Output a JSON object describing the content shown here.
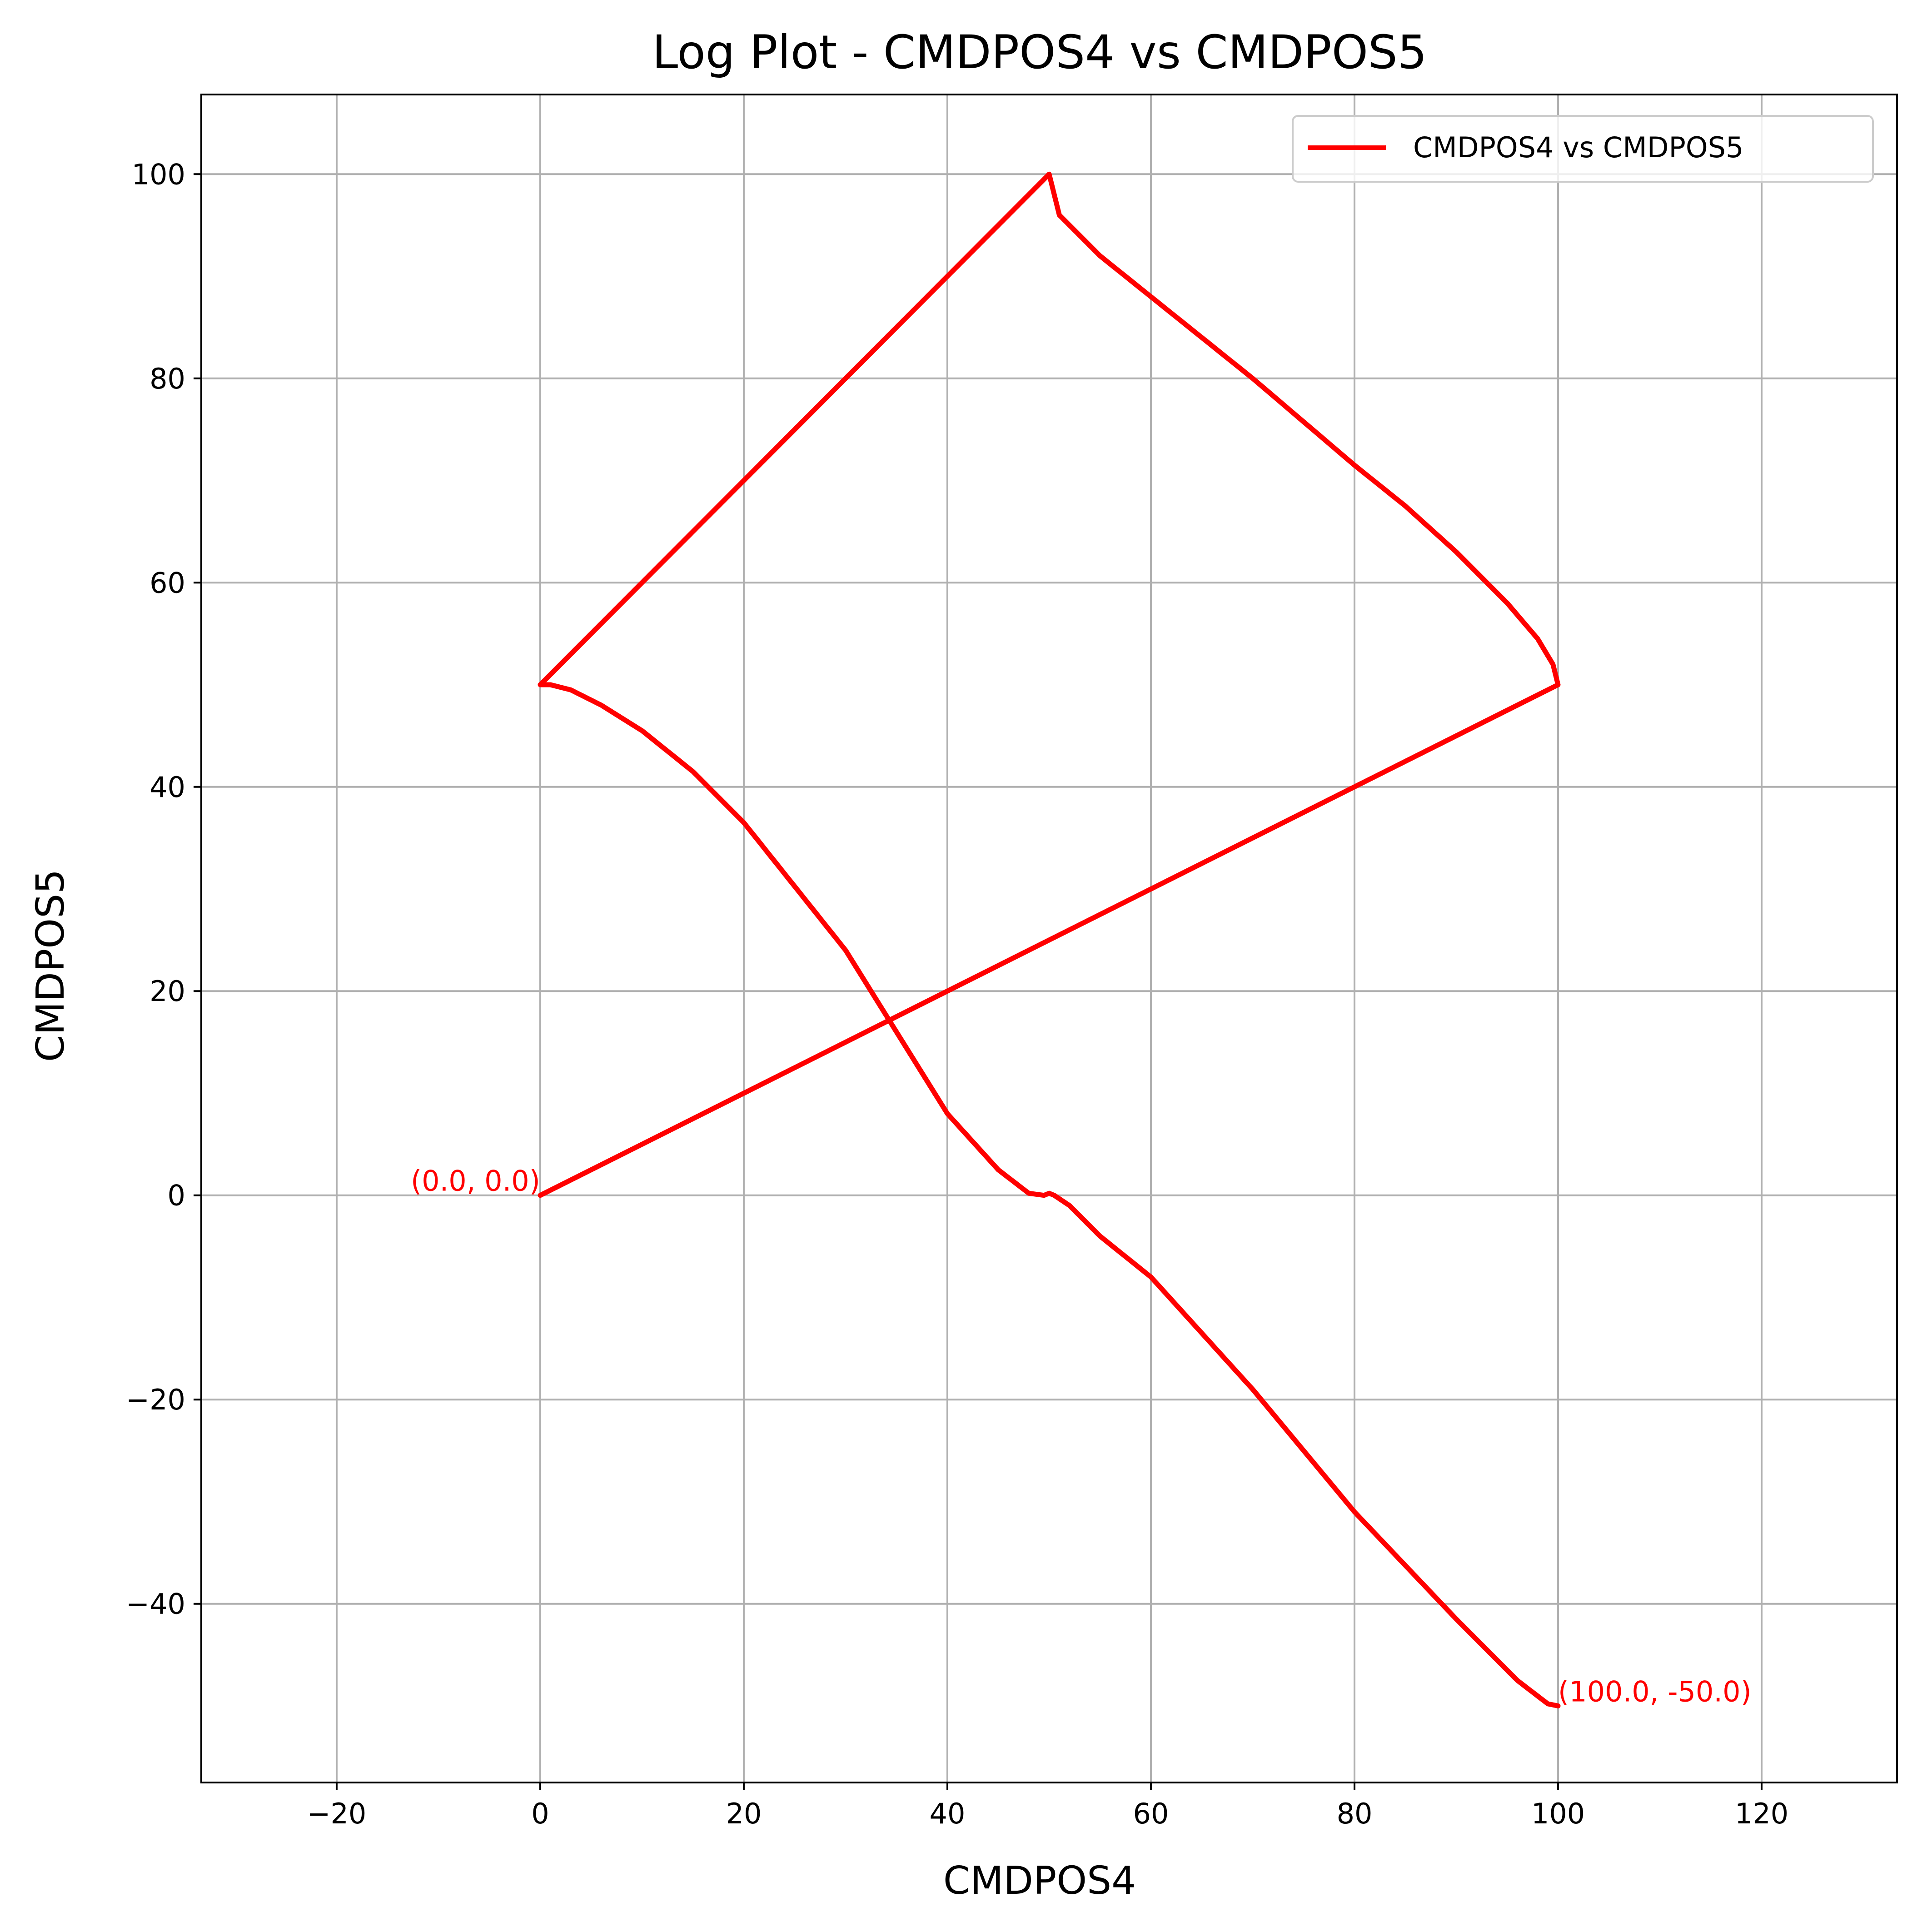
{
  "chart_data": {
    "type": "line",
    "title": "Log Plot - CMDPOS4 vs CMDPOS5",
    "xlabel": "CMDPOS4",
    "ylabel": "CMDPOS5",
    "xlim": [
      -33.3,
      133.3
    ],
    "ylim": [
      -57.5,
      107.8
    ],
    "xticks": [
      -20,
      0,
      20,
      40,
      60,
      80,
      100,
      120
    ],
    "xtick_labels": [
      "−20",
      "0",
      "20",
      "40",
      "60",
      "80",
      "100",
      "120"
    ],
    "yticks": [
      -40,
      -20,
      0,
      20,
      40,
      60,
      80,
      100
    ],
    "ytick_labels": [
      "−40",
      "−20",
      "0",
      "20",
      "40",
      "60",
      "80",
      "100"
    ],
    "grid": true,
    "legend_position": "top-right",
    "series": [
      {
        "name": "CMDPOS4 vs CMDPOS5",
        "color": "#ff0000",
        "x": [
          0,
          100,
          99.5,
          98,
          95,
          90,
          85,
          80,
          70,
          60,
          55,
          51,
          50,
          45,
          30,
          15,
          5,
          0,
          1,
          3,
          6,
          10,
          15,
          20,
          30,
          40,
          45,
          48,
          49.5,
          50,
          50.5,
          52,
          55,
          60,
          70,
          80,
          90,
          96,
          99,
          100
        ],
        "y": [
          0,
          50,
          52,
          54.5,
          58,
          63,
          67.5,
          71.5,
          80,
          88,
          92,
          96,
          100,
          95,
          80,
          65,
          55,
          50,
          50,
          49.5,
          48,
          45.5,
          41.5,
          36.5,
          24,
          8,
          2.5,
          0.2,
          0,
          0.2,
          0,
          -1,
          -4,
          -8,
          -19,
          -31,
          -41.5,
          -47.5,
          -49.8,
          -50
        ]
      }
    ],
    "annotations": [
      {
        "text": "(0.0, 0.0)",
        "x": 0,
        "y": 0,
        "color": "#ff0000"
      },
      {
        "text": "(100.0, -50.0)",
        "x": 100,
        "y": -50,
        "color": "#ff0000"
      }
    ]
  }
}
